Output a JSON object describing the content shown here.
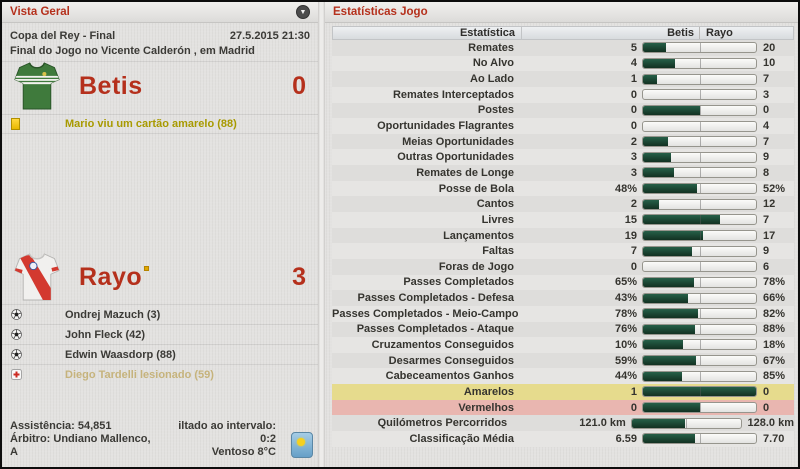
{
  "colors": {
    "accent_red": "#b5301c",
    "bar_green": "#1b4733",
    "yellow_row": "#e6db8d",
    "red_row": "#e9b6b0",
    "card_yellow": "#eec400",
    "panel_bg": "#e3e2e0"
  },
  "left_panel": {
    "title": "Vista Geral",
    "competition": "Copa del Rey - Final",
    "datetime": "27.5.2015 21:30",
    "venue_line": "Final do Jogo no Vicente Calderón , em Madrid",
    "home": {
      "name": "Betis",
      "score": "0",
      "events": [
        {
          "icon": "yellow-card",
          "text": "Mario viu um cartão amarelo (88)"
        }
      ]
    },
    "away": {
      "name": "Rayo",
      "score": "3",
      "events": [
        {
          "icon": "ball",
          "text": "Ondrej Mazuch (3)"
        },
        {
          "icon": "ball",
          "text": "John Fleck (42)"
        },
        {
          "icon": "ball",
          "text": "Edwin Waasdorp (88)"
        },
        {
          "icon": "injury",
          "text": "Diego Tardelli lesionado (59)"
        }
      ]
    },
    "footer": {
      "attendance": "Assistência: 54,851",
      "referee": "Árbitro: Undiano Mallenco, A",
      "half_time": "iltado ao intervalo: 0:2",
      "weather": "Ventoso 8°C"
    }
  },
  "stats_panel": {
    "title": "Estatísticas Jogo",
    "header": {
      "stat_col": "Estatística",
      "home_col": "Betis",
      "away_col": "Rayo"
    },
    "rows": [
      {
        "label": "Remates",
        "home": "5",
        "away": "20"
      },
      {
        "label": "No Alvo",
        "home": "4",
        "away": "10"
      },
      {
        "label": "Ao Lado",
        "home": "1",
        "away": "7"
      },
      {
        "label": "Remates Interceptados",
        "home": "0",
        "away": "3"
      },
      {
        "label": "Postes",
        "home": "0",
        "away": "0"
      },
      {
        "label": "Oportunidades Flagrantes",
        "home": "0",
        "away": "4"
      },
      {
        "label": "Meias Oportunidades",
        "home": "2",
        "away": "7"
      },
      {
        "label": "Outras Oportunidades",
        "home": "3",
        "away": "9"
      },
      {
        "label": "Remates de Longe",
        "home": "3",
        "away": "8"
      },
      {
        "label": "Posse de Bola",
        "home": "48%",
        "away": "52%"
      },
      {
        "label": "Cantos",
        "home": "2",
        "away": "12"
      },
      {
        "label": "Livres",
        "home": "15",
        "away": "7"
      },
      {
        "label": "Lançamentos",
        "home": "19",
        "away": "17"
      },
      {
        "label": "Faltas",
        "home": "7",
        "away": "9"
      },
      {
        "label": "Foras de Jogo",
        "home": "0",
        "away": "6"
      },
      {
        "label": "Passes Completados",
        "home": "65%",
        "away": "78%"
      },
      {
        "label": "Passes Completados - Defesa",
        "home": "43%",
        "away": "66%"
      },
      {
        "label": "Passes Completados - Meio-Campo",
        "home": "78%",
        "away": "82%"
      },
      {
        "label": "Passes Completados - Ataque",
        "home": "76%",
        "away": "88%"
      },
      {
        "label": "Cruzamentos Conseguidos",
        "home": "10%",
        "away": "18%"
      },
      {
        "label": "Desarmes Conseguidos",
        "home": "59%",
        "away": "67%"
      },
      {
        "label": "Cabeceamentos Ganhos",
        "home": "44%",
        "away": "85%"
      },
      {
        "label": "Amarelos",
        "home": "1",
        "away": "0",
        "highlight": "yellow"
      },
      {
        "label": "Vermelhos",
        "home": "0",
        "away": "0",
        "highlight": "red"
      },
      {
        "label": "Quilómetros Percorridos",
        "home": "121.0 km",
        "away": "128.0 km"
      },
      {
        "label": "Classificação Média",
        "home": "6.59",
        "away": "7.70"
      }
    ]
  }
}
